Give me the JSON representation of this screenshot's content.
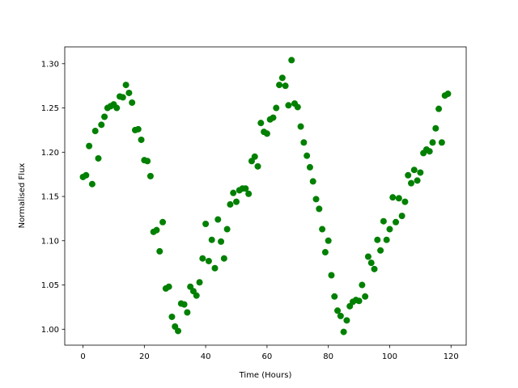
{
  "chart_data": {
    "type": "scatter",
    "xlabel": "Time (Hours)",
    "ylabel": "Normalised Flux",
    "color": "#008000",
    "x": [
      0,
      1,
      2,
      3,
      4,
      5,
      6,
      7,
      8,
      9,
      10,
      11,
      12,
      13,
      14,
      15,
      16,
      17,
      18,
      19,
      20,
      21,
      22,
      23,
      24,
      25,
      26,
      27,
      28,
      29,
      30,
      31,
      32,
      33,
      34,
      35,
      36,
      37,
      38,
      39,
      40,
      41,
      42,
      43,
      44,
      45,
      46,
      47,
      48,
      49,
      50,
      51,
      52,
      53,
      54,
      55,
      56,
      57,
      58,
      59,
      60,
      61,
      62,
      63,
      64,
      65,
      66,
      67,
      68,
      69,
      70,
      71,
      72,
      73,
      74,
      75,
      76,
      77,
      78,
      79,
      80,
      81,
      82,
      83,
      84,
      85,
      86,
      87,
      88,
      89,
      90,
      91,
      92,
      93,
      94,
      95,
      96,
      97,
      98,
      99,
      100,
      101,
      102,
      103,
      104,
      105,
      106,
      107,
      108,
      109,
      110,
      111,
      112,
      113,
      114,
      115,
      116,
      117,
      118,
      119
    ],
    "values": [
      1.172,
      1.174,
      1.207,
      1.164,
      1.224,
      1.193,
      1.231,
      1.24,
      1.25,
      1.252,
      1.254,
      1.25,
      1.263,
      1.262,
      1.276,
      1.267,
      1.256,
      1.225,
      1.226,
      1.214,
      1.191,
      1.19,
      1.173,
      1.11,
      1.112,
      1.088,
      1.121,
      1.046,
      1.048,
      1.014,
      1.003,
      0.998,
      1.029,
      1.028,
      1.019,
      1.048,
      1.043,
      1.038,
      1.053,
      1.08,
      1.119,
      1.077,
      1.101,
      1.069,
      1.124,
      1.099,
      1.08,
      1.113,
      1.141,
      1.154,
      1.144,
      1.157,
      1.159,
      1.159,
      1.153,
      1.19,
      1.195,
      1.184,
      1.233,
      1.223,
      1.221,
      1.237,
      1.239,
      1.25,
      1.276,
      1.284,
      1.275,
      1.253,
      1.304,
      1.255,
      1.251,
      1.229,
      1.211,
      1.196,
      1.183,
      1.167,
      1.147,
      1.136,
      1.113,
      1.087,
      1.1,
      1.061,
      1.037,
      1.021,
      1.015,
      0.997,
      1.01,
      1.026,
      1.031,
      1.033,
      1.032,
      1.05,
      1.037,
      1.082,
      1.075,
      1.068,
      1.101,
      1.089,
      1.122,
      1.101,
      1.113,
      1.149,
      1.121,
      1.148,
      1.128,
      1.144,
      1.174,
      1.165,
      1.18,
      1.168,
      1.177,
      1.199,
      1.203,
      1.201,
      1.211,
      1.227,
      1.249,
      1.211,
      1.264,
      1.266
    ],
    "xlim": [
      -5.95,
      124.95
    ],
    "xticks": [
      0,
      20,
      40,
      60,
      80,
      100,
      120
    ],
    "ylim": [
      0.982,
      1.319
    ],
    "yticks": [
      {
        "value": 1.0,
        "label": "1.00"
      },
      {
        "value": 1.05,
        "label": "1.05"
      },
      {
        "value": 1.1,
        "label": "1.10"
      },
      {
        "value": 1.15,
        "label": "1.15"
      },
      {
        "value": 1.2,
        "label": "1.20"
      },
      {
        "value": 1.25,
        "label": "1.25"
      },
      {
        "value": 1.3,
        "label": "1.30"
      }
    ],
    "grid": false
  }
}
